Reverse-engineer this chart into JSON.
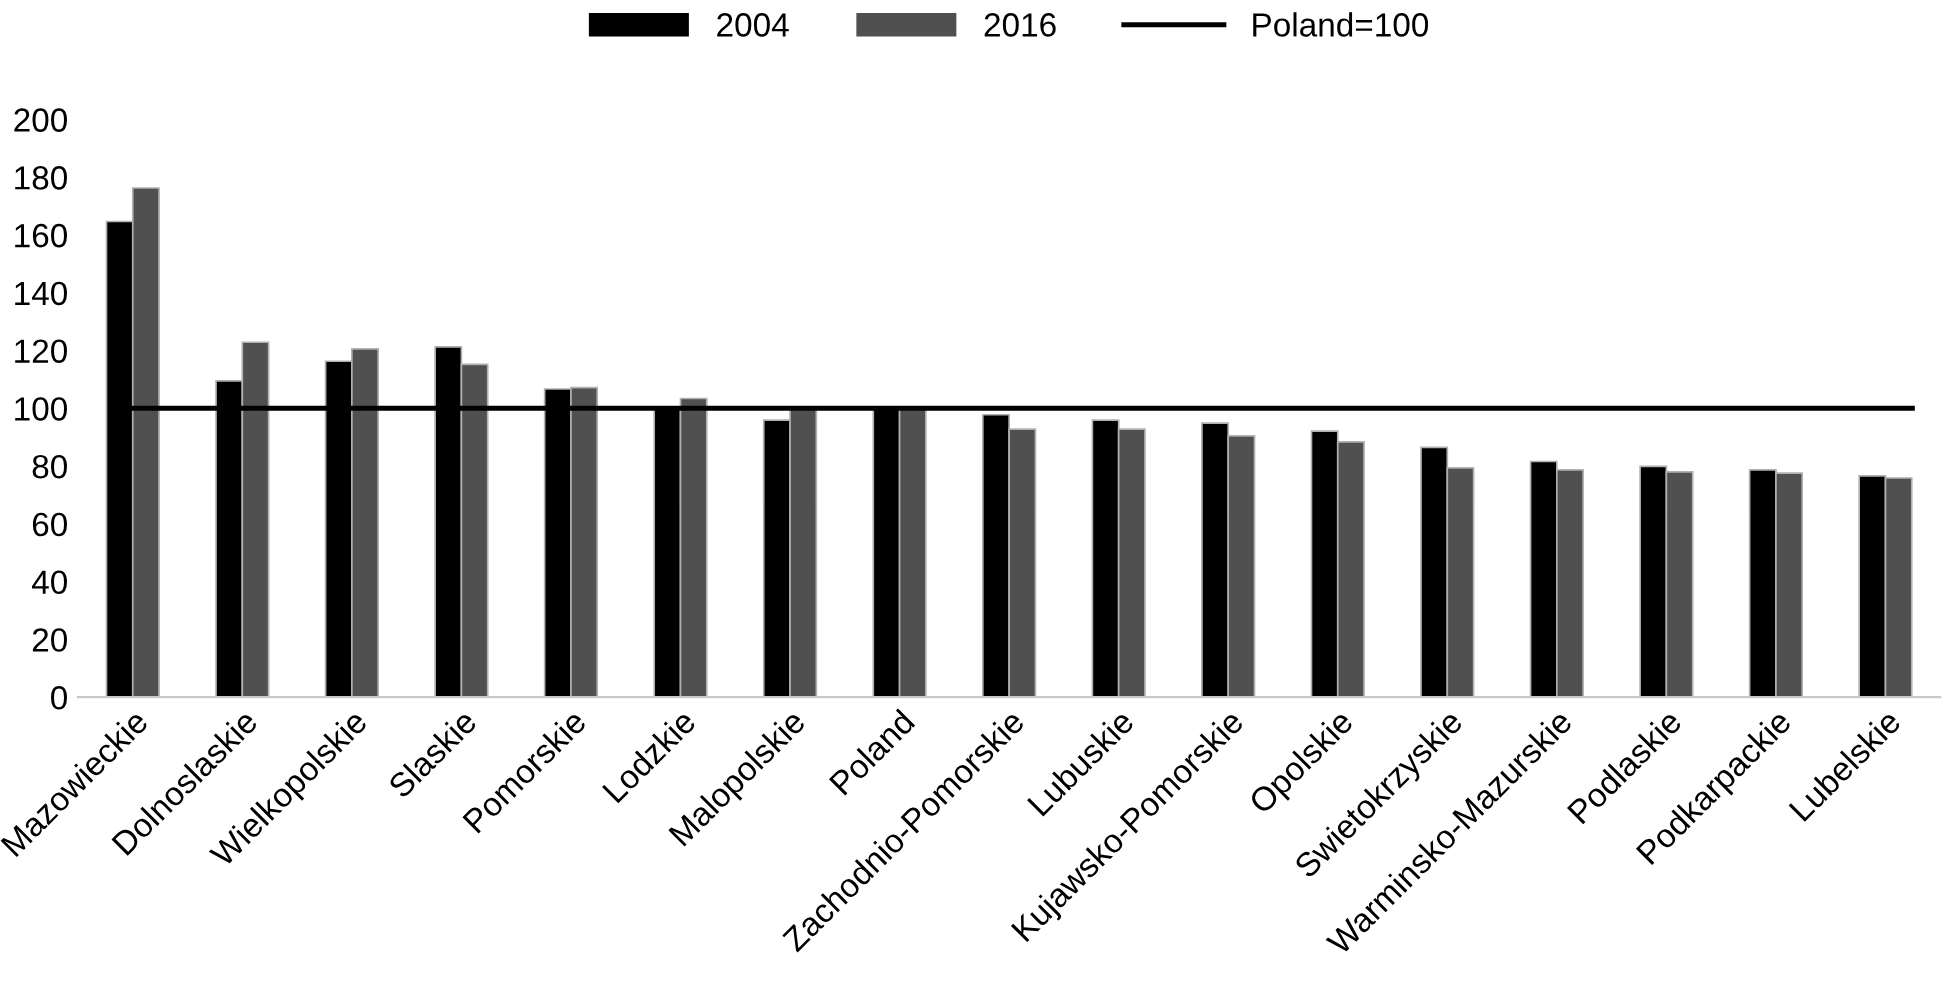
{
  "chart_data": {
    "type": "bar",
    "categories": [
      "Mazowieckie",
      "Dolnoslaskie",
      "Wielkopolskie",
      "Slaskie",
      "Pomorskie",
      "Lodzkie",
      "Malopolskie",
      "Poland",
      "Zachodnio-Pomorskie",
      "Lubuskie",
      "Kujawsko-Pomorskie",
      "Opolskie",
      "Swietokrzyskie",
      "Warminsko-Mazurskie",
      "Podlaskie",
      "Podkarpackie",
      "Lubelskie"
    ],
    "series": [
      {
        "name": "2004",
        "color": "#000000",
        "values": [
          164.7,
          109.5,
          116.3,
          121.3,
          106.7,
          100.4,
          95.9,
          100,
          97.8,
          95.9,
          94.9,
          92.1,
          86.5,
          81.6,
          79.9,
          78.7,
          76.6
        ]
      },
      {
        "name": "2016",
        "color": "#505050",
        "values": [
          176.3,
          122.9,
          120.6,
          115.2,
          107.2,
          103.4,
          100.1,
          100,
          92.8,
          92.8,
          90.5,
          88.4,
          79.4,
          78.7,
          78.0,
          77.6,
          75.9
        ]
      }
    ],
    "ref_lines": [
      {
        "axis": "y",
        "value": 100,
        "label": "Poland=100",
        "color": "#000000",
        "line_style": "solid"
      }
    ],
    "ylim": [
      0,
      200
    ],
    "yticks": [
      0,
      20,
      40,
      60,
      80,
      100,
      120,
      140,
      160,
      180,
      200
    ],
    "grid": false,
    "legend": "top"
  }
}
